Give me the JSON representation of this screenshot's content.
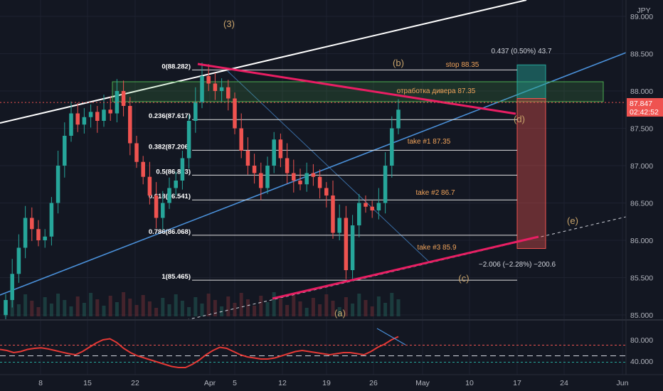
{
  "chart_data": {
    "type": "candlestick",
    "currency_label": "JPY",
    "last_price": "87.847",
    "countdown": "02:42:52",
    "y_ticks": [
      "89.000",
      "88.500",
      "88.000",
      "87.500",
      "87.000",
      "86.500",
      "86.000",
      "85.500",
      "85.000"
    ],
    "x_ticks": [
      "8",
      "15",
      "22",
      "Apr",
      "5",
      "12",
      "19",
      "26",
      "May",
      "10",
      "17",
      "24",
      "Jun"
    ],
    "ylim": [
      84.98,
      89.2
    ],
    "fib_levels": [
      {
        "ratio": "0",
        "price": 88.282,
        "label": "0(88.282)"
      },
      {
        "ratio": "0.236",
        "price": 87.617,
        "label": "0.236(87.617)"
      },
      {
        "ratio": "0.382",
        "price": 87.206,
        "label": "0.382(87.206)"
      },
      {
        "ratio": "0.5",
        "price": 86.873,
        "label": "0.5(86.873)"
      },
      {
        "ratio": "0.618",
        "price": 86.541,
        "label": "0.618(86.541)"
      },
      {
        "ratio": "0.786",
        "price": 86.068,
        "label": "0.786(86.068)"
      },
      {
        "ratio": "1",
        "price": 85.465,
        "label": "1(85.465)"
      }
    ],
    "wave_labels": [
      "(3)",
      "(b)",
      "(d)",
      "(e)",
      "(c)",
      "(a)"
    ],
    "annotations": {
      "stop": "stop 88.35",
      "zone": "отработка дивера 87.35",
      "take1": "take #1 87.35",
      "take2": "take #2 86.7",
      "take3": "take #3 85.9",
      "position_top": "0.437 (0.50%) 43.7",
      "position_bottom": "−2.006 (−2.28%) −200.6"
    },
    "stop_price": 88.35,
    "entry_price": 87.9,
    "target_price": 85.89,
    "oscillator": {
      "y_ticks": [
        "80.000",
        "40.000"
      ],
      "ylim": [
        20,
        100
      ],
      "overbought": 70,
      "mid": 50,
      "oversold": 38,
      "values": [
        62,
        60,
        56,
        58,
        62,
        64,
        65,
        63,
        60,
        57,
        54,
        52,
        58,
        66,
        74,
        80,
        82,
        75,
        64,
        56,
        50,
        46,
        42,
        38,
        34,
        30,
        28,
        28,
        34,
        42,
        52,
        60,
        66,
        64,
        58,
        52,
        48,
        46,
        44,
        44,
        46,
        50,
        54,
        58,
        60,
        58,
        56,
        54,
        52,
        54,
        56,
        56,
        54,
        52,
        58,
        66,
        72,
        80,
        86
      ]
    },
    "closes": [
      85.2,
      85.55,
      85.9,
      86.3,
      86.15,
      86.0,
      86.05,
      86.5,
      87.0,
      87.4,
      87.7,
      87.55,
      87.65,
      87.72,
      87.6,
      87.75,
      87.7,
      88.0,
      87.8,
      87.3,
      87.05,
      86.85,
      86.6,
      86.3,
      86.5,
      86.7,
      86.8,
      87.1,
      87.6,
      87.85,
      88.2,
      88.1,
      88.0,
      88.05,
      87.9,
      87.5,
      87.2,
      87.0,
      86.9,
      86.7,
      87.0,
      87.35,
      87.1,
      86.9,
      86.8,
      86.75,
      86.9,
      86.85,
      86.7,
      86.6,
      86.1,
      86.3,
      85.6,
      86.2,
      86.5,
      86.45,
      86.4,
      86.5,
      87.0,
      87.5,
      87.75
    ]
  }
}
